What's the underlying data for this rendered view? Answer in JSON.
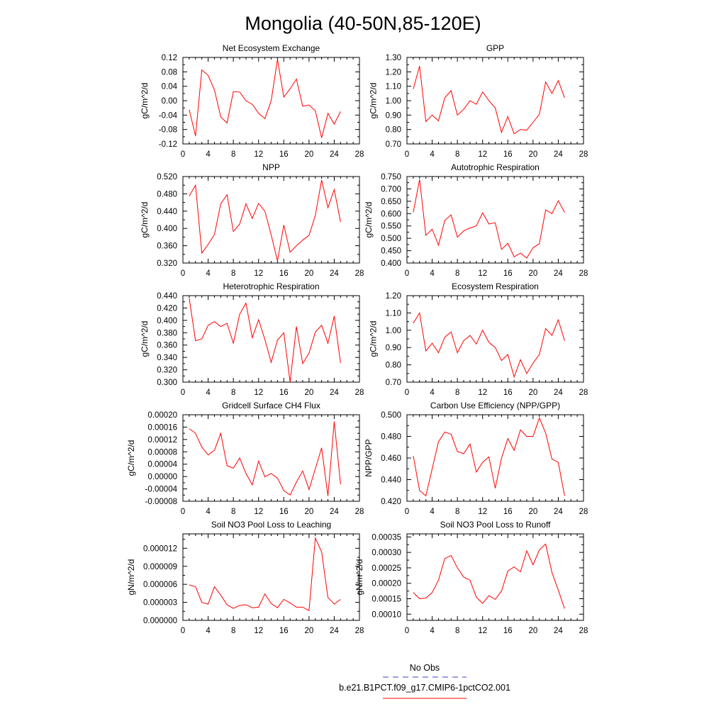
{
  "title": "Mongolia (40-50N,85-120E)",
  "legend": {
    "entries": [
      {
        "label": "No Obs",
        "color": "#3b3bd6",
        "dash": "dashed"
      },
      {
        "label": "b.e21.B1PCT.f09_g17.CMIP6-1pctCO2.001",
        "color": "#ff0000",
        "dash": "solid"
      }
    ]
  },
  "chart_data": [
    {
      "type": "line",
      "title": "Net Ecosystem Exchange",
      "ylabel": "gC/m^2/d",
      "xlim": [
        0,
        28
      ],
      "xticks": [
        "0",
        "4",
        "8",
        "12",
        "16",
        "20",
        "24",
        "28"
      ],
      "ylim": [
        -0.12,
        0.12
      ],
      "yticks": [
        "-0.12",
        "-0.08",
        "-0.04",
        "0.00",
        "0.04",
        "0.08",
        "0.12"
      ],
      "grid": false,
      "series": [
        {
          "color": "#ff0000",
          "x": [
            1,
            2,
            3,
            4,
            5,
            6,
            7,
            8,
            9,
            10,
            11,
            12,
            13,
            14,
            15,
            16,
            17,
            18,
            19,
            20,
            21,
            22,
            23,
            24,
            25
          ],
          "y": [
            -0.025,
            -0.098,
            0.085,
            0.07,
            0.03,
            -0.045,
            -0.062,
            0.025,
            0.024,
            0.0,
            -0.01,
            -0.035,
            -0.05,
            0.0,
            0.115,
            0.01,
            0.033,
            0.06,
            -0.015,
            -0.012,
            -0.028,
            -0.103,
            -0.035,
            -0.065,
            -0.03
          ]
        }
      ]
    },
    {
      "type": "line",
      "title": "GPP",
      "ylabel": "gC/m^2/d",
      "xlim": [
        0,
        28
      ],
      "xticks": [
        "0",
        "4",
        "8",
        "12",
        "16",
        "20",
        "24",
        "28"
      ],
      "ylim": [
        0.7,
        1.3
      ],
      "yticks": [
        "0.70",
        "0.80",
        "0.90",
        "1.00",
        "1.10",
        "1.20",
        "1.30"
      ],
      "grid": false,
      "series": [
        {
          "color": "#ff0000",
          "x": [
            1,
            2,
            3,
            4,
            5,
            6,
            7,
            8,
            9,
            10,
            11,
            12,
            13,
            14,
            15,
            16,
            17,
            18,
            19,
            20,
            21,
            22,
            23,
            24,
            25
          ],
          "y": [
            1.08,
            1.24,
            0.855,
            0.9,
            0.86,
            1.02,
            1.07,
            0.9,
            0.94,
            1.0,
            0.975,
            1.06,
            1.0,
            0.95,
            0.78,
            0.89,
            0.77,
            0.8,
            0.795,
            0.85,
            0.905,
            1.13,
            1.05,
            1.14,
            1.02
          ]
        }
      ]
    },
    {
      "type": "line",
      "title": "NPP",
      "ylabel": "gC/m^2/d",
      "xlim": [
        0,
        28
      ],
      "xticks": [
        "0",
        "4",
        "8",
        "12",
        "16",
        "20",
        "24",
        "28"
      ],
      "ylim": [
        0.32,
        0.52
      ],
      "yticks": [
        "0.320",
        "0.360",
        "0.400",
        "0.440",
        "0.480",
        "0.520"
      ],
      "grid": false,
      "series": [
        {
          "color": "#ff0000",
          "x": [
            1,
            2,
            3,
            4,
            5,
            6,
            7,
            8,
            9,
            10,
            11,
            12,
            13,
            14,
            15,
            16,
            17,
            18,
            19,
            20,
            21,
            22,
            23,
            24,
            25
          ],
          "y": [
            0.475,
            0.5,
            0.343,
            0.363,
            0.386,
            0.457,
            0.478,
            0.393,
            0.41,
            0.457,
            0.423,
            0.458,
            0.44,
            0.385,
            0.325,
            0.408,
            0.345,
            0.36,
            0.373,
            0.384,
            0.43,
            0.512,
            0.448,
            0.49,
            0.415
          ]
        }
      ]
    },
    {
      "type": "line",
      "title": "Autotrophic Respiration",
      "ylabel": "gC/m^2/d",
      "xlim": [
        0,
        28
      ],
      "xticks": [
        "0",
        "4",
        "8",
        "12",
        "16",
        "20",
        "24",
        "28"
      ],
      "ylim": [
        0.4,
        0.75
      ],
      "yticks": [
        "0.400",
        "0.450",
        "0.500",
        "0.550",
        "0.600",
        "0.650",
        "0.700",
        "0.750"
      ],
      "grid": false,
      "series": [
        {
          "color": "#ff0000",
          "x": [
            1,
            2,
            3,
            4,
            5,
            6,
            7,
            8,
            9,
            10,
            11,
            12,
            13,
            14,
            15,
            16,
            17,
            18,
            19,
            20,
            21,
            22,
            23,
            24,
            25
          ],
          "y": [
            0.605,
            0.738,
            0.512,
            0.537,
            0.472,
            0.572,
            0.595,
            0.505,
            0.53,
            0.542,
            0.55,
            0.603,
            0.558,
            0.563,
            0.455,
            0.48,
            0.425,
            0.44,
            0.42,
            0.462,
            0.478,
            0.615,
            0.6,
            0.652,
            0.605
          ]
        }
      ]
    },
    {
      "type": "line",
      "title": "Heterotrophic Respiration",
      "ylabel": "gC/m^2/d",
      "xlim": [
        0,
        28
      ],
      "xticks": [
        "0",
        "4",
        "8",
        "12",
        "16",
        "20",
        "24",
        "28"
      ],
      "ylim": [
        0.3,
        0.44
      ],
      "yticks": [
        "0.300",
        "0.320",
        "0.340",
        "0.360",
        "0.380",
        "0.400",
        "0.420",
        "0.440"
      ],
      "grid": false,
      "series": [
        {
          "color": "#ff0000",
          "x": [
            1,
            2,
            3,
            4,
            5,
            6,
            7,
            8,
            9,
            10,
            11,
            12,
            13,
            14,
            15,
            16,
            17,
            18,
            19,
            20,
            21,
            22,
            23,
            24,
            25
          ],
          "y": [
            0.436,
            0.367,
            0.37,
            0.392,
            0.398,
            0.39,
            0.395,
            0.363,
            0.41,
            0.428,
            0.372,
            0.401,
            0.369,
            0.332,
            0.368,
            0.38,
            0.3,
            0.39,
            0.33,
            0.347,
            0.381,
            0.392,
            0.363,
            0.407,
            0.331
          ]
        }
      ]
    },
    {
      "type": "line",
      "title": "Ecosystem Respiration",
      "ylabel": "gC/m^2/d",
      "xlim": [
        0,
        28
      ],
      "xticks": [
        "0",
        "4",
        "8",
        "12",
        "16",
        "20",
        "24",
        "28"
      ],
      "ylim": [
        0.7,
        1.2
      ],
      "yticks": [
        "0.70",
        "0.80",
        "0.90",
        "1.00",
        "1.10",
        "1.20"
      ],
      "grid": false,
      "series": [
        {
          "color": "#ff0000",
          "x": [
            1,
            2,
            3,
            4,
            5,
            6,
            7,
            8,
            9,
            10,
            11,
            12,
            13,
            14,
            15,
            16,
            17,
            18,
            19,
            20,
            21,
            22,
            23,
            24,
            25
          ],
          "y": [
            1.04,
            1.1,
            0.88,
            0.925,
            0.87,
            0.96,
            0.99,
            0.87,
            0.94,
            0.97,
            0.92,
            1.0,
            0.93,
            0.9,
            0.825,
            0.86,
            0.73,
            0.83,
            0.75,
            0.81,
            0.86,
            1.01,
            0.97,
            1.06,
            0.94
          ]
        }
      ]
    },
    {
      "type": "line",
      "title": "Gridcell Surface CH4 Flux",
      "ylabel": "gC/m^2/d",
      "xlim": [
        0,
        28
      ],
      "xticks": [
        "0",
        "4",
        "8",
        "12",
        "16",
        "20",
        "24",
        "28"
      ],
      "ylim": [
        -8e-05,
        0.0002
      ],
      "yticks": [
        "-0.00008",
        "-0.00004",
        "0.00000",
        "0.00004",
        "0.00008",
        "0.00012",
        "0.00016",
        "0.00020"
      ],
      "grid": false,
      "series": [
        {
          "color": "#ff0000",
          "x": [
            1,
            2,
            3,
            4,
            5,
            6,
            7,
            8,
            9,
            10,
            11,
            12,
            13,
            14,
            15,
            16,
            17,
            18,
            19,
            20,
            21,
            22,
            23,
            24,
            25
          ],
          "y": [
            0.000155,
            0.00014,
            9.5e-05,
            7e-05,
            8.5e-05,
            0.00014,
            3.5e-05,
            2.7e-05,
            6e-05,
            1e-05,
            -2.7e-05,
            5e-05,
            -1e-06,
            1e-05,
            -5e-06,
            -4.5e-05,
            -6e-05,
            -1.8e-05,
            1.8e-05,
            -4.2e-05,
            2.5e-05,
            9.3e-05,
            -6.3e-05,
            0.000178,
            -2.5e-05
          ]
        }
      ]
    },
    {
      "type": "line",
      "title": "Carbon Use Efficiency (NPP/GPP)",
      "ylabel": "NPP/GPP",
      "xlim": [
        0,
        28
      ],
      "xticks": [
        "0",
        "4",
        "8",
        "12",
        "16",
        "20",
        "24",
        "28"
      ],
      "ylim": [
        0.42,
        0.5
      ],
      "yticks": [
        "0.420",
        "0.440",
        "0.460",
        "0.480",
        "0.500"
      ],
      "grid": false,
      "series": [
        {
          "color": "#ff0000",
          "x": [
            1,
            2,
            3,
            4,
            5,
            6,
            7,
            8,
            9,
            10,
            11,
            12,
            13,
            14,
            15,
            16,
            17,
            18,
            19,
            20,
            21,
            22,
            23,
            24,
            25
          ],
          "y": [
            0.462,
            0.43,
            0.425,
            0.45,
            0.475,
            0.484,
            0.482,
            0.466,
            0.464,
            0.473,
            0.447,
            0.456,
            0.461,
            0.432,
            0.46,
            0.478,
            0.467,
            0.486,
            0.48,
            0.48,
            0.497,
            0.483,
            0.459,
            0.456,
            0.425
          ]
        }
      ]
    },
    {
      "type": "line",
      "title": "Soil NO3 Pool Loss to Leaching",
      "ylabel": "gN/m^2/d",
      "xlim": [
        0,
        28
      ],
      "xticks": [
        "0",
        "4",
        "8",
        "12",
        "16",
        "20",
        "24",
        "28"
      ],
      "ylim": [
        0,
        1.44e-05
      ],
      "yticks": [
        "0.000000",
        "0.000003",
        "0.000006",
        "0.000009",
        "0.000012"
      ],
      "grid": false,
      "series": [
        {
          "color": "#ff0000",
          "x": [
            1,
            2,
            3,
            4,
            5,
            6,
            7,
            8,
            9,
            10,
            11,
            12,
            13,
            14,
            15,
            16,
            17,
            18,
            19,
            20,
            21,
            22,
            23,
            24,
            25
          ],
          "y": [
            5.9e-06,
            5.6e-06,
            3e-06,
            2.7e-06,
            5.6e-06,
            4.2e-06,
            2.6e-06,
            2e-06,
            2.5e-06,
            2.6e-06,
            2.1e-06,
            2.2e-06,
            4.4e-06,
            2.8e-06,
            2.1e-06,
            3.5e-06,
            2.9e-06,
            2.2e-06,
            2.2e-06,
            1.6e-06,
            1.37e-05,
            1.14e-05,
            3.8e-06,
            2.7e-06,
            3.5e-06
          ]
        }
      ]
    },
    {
      "type": "line",
      "title": "Soil NO3 Pool Loss to Runoff",
      "ylabel": "gN/m^2/d",
      "xlim": [
        0,
        28
      ],
      "xticks": [
        "0",
        "4",
        "8",
        "12",
        "16",
        "20",
        "24",
        "28"
      ],
      "ylim": [
        8e-05,
        0.00036
      ],
      "yticks": [
        "0.00010",
        "0.00015",
        "0.00020",
        "0.00025",
        "0.00030",
        "0.00035"
      ],
      "grid": false,
      "series": [
        {
          "color": "#ff0000",
          "x": [
            1,
            2,
            3,
            4,
            5,
            6,
            7,
            8,
            9,
            10,
            11,
            12,
            13,
            14,
            15,
            16,
            17,
            18,
            19,
            20,
            21,
            22,
            23,
            24,
            25
          ],
          "y": [
            0.00017,
            0.00015,
            0.000152,
            0.00017,
            0.00021,
            0.00028,
            0.00029,
            0.00025,
            0.00022,
            0.00021,
            0.000155,
            0.000135,
            0.00016,
            0.000148,
            0.000175,
            0.00024,
            0.000253,
            0.000237,
            0.000305,
            0.00026,
            0.000308,
            0.000327,
            0.000235,
            0.000178,
            0.000118
          ]
        }
      ]
    }
  ]
}
